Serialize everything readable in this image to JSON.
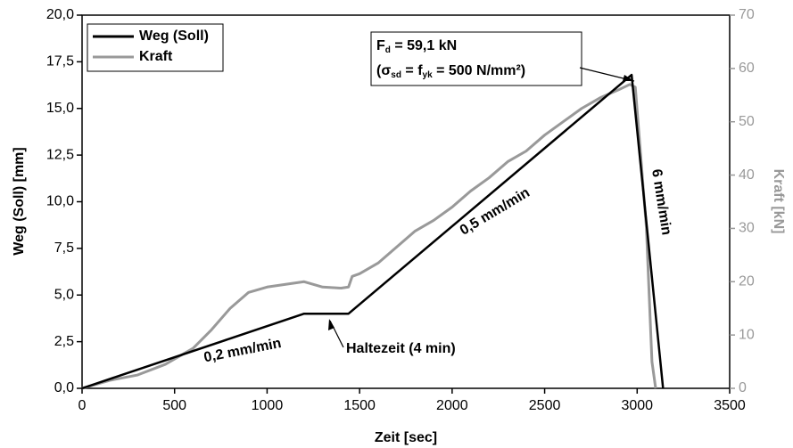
{
  "chart_data": {
    "type": "line",
    "xlabel": "Zeit [sec]",
    "ylabel": "Weg (Soll) [mm]",
    "y2label": "Kraft [kN]",
    "xlim": [
      0,
      3500
    ],
    "xticks": [
      0,
      500,
      1000,
      1500,
      2000,
      2500,
      3000,
      3500
    ],
    "ylim": [
      0,
      20
    ],
    "yticks": [
      {
        "value": 0,
        "label": "0,0"
      },
      {
        "value": 2.5,
        "label": "2,5"
      },
      {
        "value": 5,
        "label": "5,0"
      },
      {
        "value": 7.5,
        "label": "7,5"
      },
      {
        "value": 10,
        "label": "10,0"
      },
      {
        "value": 12.5,
        "label": "12,5"
      },
      {
        "value": 15,
        "label": "15,0"
      },
      {
        "value": 17.5,
        "label": "17,5"
      },
      {
        "value": 20,
        "label": "20,0"
      }
    ],
    "y2lim": [
      0,
      70
    ],
    "y2ticks": [
      0,
      10,
      20,
      30,
      40,
      50,
      60,
      70
    ],
    "y2color": "#999999",
    "legend": "upper left",
    "series": [
      {
        "name": "Weg (Soll)",
        "color": "#000000",
        "x": [
          0,
          1200,
          1440,
          2970,
          3140
        ],
        "values": [
          0,
          4,
          4,
          16.8,
          0
        ]
      },
      {
        "name": "Kraft",
        "color": "#999999",
        "axis": "y2",
        "x": [
          0,
          150,
          300,
          450,
          600,
          700,
          800,
          900,
          1000,
          1100,
          1200,
          1300,
          1400,
          1440,
          1460,
          1500,
          1600,
          1700,
          1800,
          1900,
          2000,
          2100,
          2200,
          2300,
          2400,
          2500,
          2600,
          2700,
          2800,
          2900,
          2960,
          2990,
          3050,
          3080,
          3100
        ],
        "values": [
          0,
          1.5,
          2.5,
          4.5,
          7.5,
          11,
          15,
          18,
          19,
          19.5,
          20,
          19,
          18.8,
          19,
          21,
          21.5,
          23.5,
          26.5,
          29.5,
          31.5,
          34,
          37,
          39.5,
          42.5,
          44.5,
          47.5,
          50,
          52.5,
          54.5,
          56,
          57,
          56.5,
          30,
          5,
          0
        ]
      }
    ],
    "annotations": [
      {
        "lines": [
          [
            "F",
            "d",
            " = 59,1 kN"
          ],
          [
            "(σ",
            "sd",
            " = f",
            "yk",
            " = 500 N/mm²)"
          ]
        ]
      },
      {
        "text": "Haltezeit (4 min)"
      },
      {
        "text": "0,2 mm/min"
      },
      {
        "text": "0,5 mm/min"
      },
      {
        "text": "6 mm/min"
      }
    ]
  }
}
